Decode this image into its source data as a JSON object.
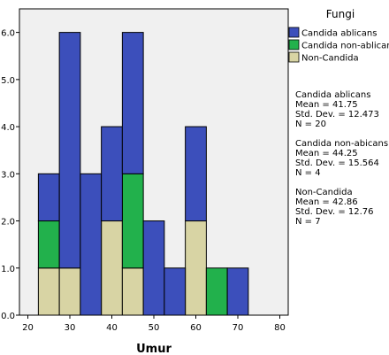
{
  "chart_data": {
    "type": "bar",
    "stacked": true,
    "xlabel": "Umur",
    "ylabel": "",
    "xlim": [
      18,
      82
    ],
    "ylim": [
      0,
      6.5
    ],
    "xticks": [
      20,
      30,
      40,
      50,
      60,
      70,
      80
    ],
    "yticks": [
      0,
      1,
      2,
      3,
      4,
      5,
      6
    ],
    "ytick_labels": [
      "0.0",
      "1.0",
      "2.0",
      "3.0",
      "4.0",
      "5.0",
      "6.0"
    ],
    "bin_width": 5,
    "bin_starts": [
      22.5,
      27.5,
      32.5,
      37.5,
      42.5,
      47.5,
      52.5,
      57.5,
      62.5,
      67.5
    ],
    "grid": false,
    "legend_title": "Fungi",
    "legend_position": "right",
    "series": [
      {
        "name": "Non-Candida",
        "color": "#d8d4a4",
        "values": [
          1,
          1,
          0,
          2,
          1,
          0,
          0,
          2,
          0,
          0
        ]
      },
      {
        "name": "Candida non-ablicans",
        "color": "#22b14c",
        "values": [
          1,
          0,
          0,
          0,
          2,
          0,
          0,
          0,
          1,
          0
        ]
      },
      {
        "name": "Candida ablicans",
        "color": "#3c4fbb",
        "values": [
          1,
          5,
          3,
          2,
          3,
          2,
          1,
          2,
          0,
          1
        ]
      }
    ],
    "legend_order": [
      "Candida ablicans",
      "Candida non-ablicans",
      "Non-Candida"
    ],
    "stats": [
      {
        "name": "Candida ablicans",
        "mean": "Mean = 41.75",
        "sd": "Std. Dev. = 12.473",
        "n": "N = 20"
      },
      {
        "name": "Candida non-abicans",
        "mean": "Mean = 44.25",
        "sd": "Std. Dev. = 15.564",
        "n": "N = 4"
      },
      {
        "name": "Non-Candida",
        "mean": "Mean = 42.86",
        "sd": "Std. Dev. = 12.76",
        "n": "N = 7"
      }
    ]
  }
}
